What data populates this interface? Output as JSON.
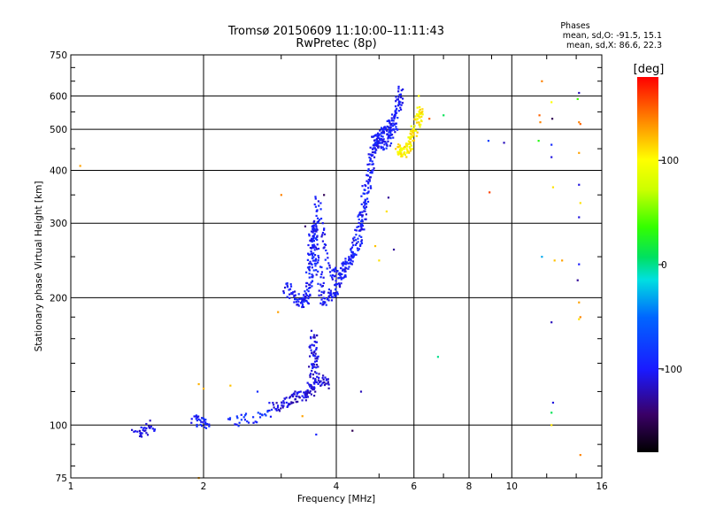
{
  "chart_data": {
    "type": "scatter",
    "title": "Tromsø 20150609 11:10:00–11:11:43",
    "subtitle": "RwPretec (8p)",
    "xlabel": "Frequency [MHz]",
    "ylabel": "Stationary phase Virtual Height [km]",
    "x_scale": "log",
    "y_scale": "log",
    "xlim": [
      1,
      16
    ],
    "ylim": [
      75,
      750
    ],
    "x_ticks": [
      1,
      2,
      4,
      6,
      8,
      10,
      16
    ],
    "x_tick_labels": [
      "1",
      "2",
      "4",
      "6",
      "8",
      "10",
      "16"
    ],
    "y_ticks": [
      75,
      100,
      200,
      300,
      400,
      500,
      600,
      750
    ],
    "y_tick_labels": [
      "75",
      "100",
      "200",
      "300",
      "400",
      "500",
      "600",
      "750"
    ],
    "grid": true,
    "stats": {
      "heading": "Phases",
      "line_o": "mean, sd,O: -91.5, 15.1",
      "line_x": "mean, sd,X:  86.6, 22.3"
    },
    "colorbar": {
      "label": "[deg]",
      "range": [
        -180,
        180
      ],
      "ticks": [
        100,
        0,
        -100
      ],
      "tick_labels": [
        "100",
        "0",
        "-100"
      ]
    },
    "traces": [
      {
        "points": [
          [
            1.4,
            95
          ],
          [
            1.55,
            100
          ]
        ],
        "phase": -110
      },
      {
        "points": [
          [
            1.9,
            103
          ],
          [
            2.05,
            100
          ]
        ],
        "phase": -95
      },
      {
        "points": [
          [
            2.3,
            102
          ],
          [
            2.85,
            106
          ]
        ],
        "phase": -90
      },
      {
        "points": [
          [
            2.85,
            110
          ],
          [
            3.15,
            115
          ],
          [
            3.4,
            118
          ],
          [
            3.55,
            122
          ]
        ],
        "phase": -112
      },
      {
        "points": [
          [
            3.5,
            122
          ],
          [
            3.55,
            165
          ],
          [
            3.6,
            130
          ],
          [
            3.85,
            125
          ]
        ],
        "phase": -110
      },
      {
        "points": [
          [
            3.05,
            215
          ],
          [
            3.3,
            195
          ],
          [
            3.45,
            200
          ],
          [
            3.5,
            260
          ],
          [
            3.55,
            300
          ],
          [
            3.6,
            250
          ],
          [
            3.75,
            195
          ],
          [
            4.0,
            210
          ],
          [
            4.2,
            235
          ],
          [
            4.5,
            275
          ],
          [
            4.7,
            350
          ],
          [
            4.85,
            450
          ],
          [
            5.0,
            480
          ],
          [
            5.2,
            500
          ],
          [
            5.5,
            550
          ],
          [
            5.6,
            620
          ]
        ],
        "phase": -100
      },
      {
        "points": [
          [
            3.5,
            210
          ],
          [
            3.6,
            340
          ],
          [
            3.9,
            225
          ],
          [
            4.3,
            245
          ],
          [
            4.6,
            330
          ],
          [
            4.9,
            480
          ],
          [
            5.2,
            460
          ],
          [
            5.5,
            520
          ]
        ],
        "phase": -98
      },
      {
        "points": [
          [
            5.5,
            450
          ],
          [
            5.7,
            440
          ],
          [
            5.9,
            470
          ],
          [
            6.1,
            520
          ],
          [
            6.2,
            560
          ]
        ],
        "phase": 105
      }
    ],
    "scattered": [
      {
        "x": 1.05,
        "y": 410,
        "phase": 130
      },
      {
        "x": 1.95,
        "y": 125,
        "phase": 125
      },
      {
        "x": 2.0,
        "y": 122,
        "phase": 125
      },
      {
        "x": 1.95,
        "y": 75,
        "phase": 130
      },
      {
        "x": 2.3,
        "y": 124,
        "phase": 120
      },
      {
        "x": 2.65,
        "y": 120,
        "phase": -90
      },
      {
        "x": 3.0,
        "y": 350,
        "phase": 140
      },
      {
        "x": 2.95,
        "y": 185,
        "phase": 130
      },
      {
        "x": 3.35,
        "y": 105,
        "phase": 130
      },
      {
        "x": 3.6,
        "y": 95,
        "phase": -95
      },
      {
        "x": 3.4,
        "y": 295,
        "phase": -140
      },
      {
        "x": 3.75,
        "y": 350,
        "phase": -150
      },
      {
        "x": 4.35,
        "y": 97,
        "phase": -150
      },
      {
        "x": 4.55,
        "y": 120,
        "phase": -120
      },
      {
        "x": 4.9,
        "y": 265,
        "phase": 120
      },
      {
        "x": 5.0,
        "y": 245,
        "phase": 110
      },
      {
        "x": 5.2,
        "y": 320,
        "phase": 110
      },
      {
        "x": 5.25,
        "y": 345,
        "phase": -130
      },
      {
        "x": 5.4,
        "y": 260,
        "phase": -130
      },
      {
        "x": 6.15,
        "y": 600,
        "phase": 100
      },
      {
        "x": 6.5,
        "y": 530,
        "phase": 150
      },
      {
        "x": 6.8,
        "y": 145,
        "phase": 0
      },
      {
        "x": 7.0,
        "y": 540,
        "phase": 10
      },
      {
        "x": 8.85,
        "y": 470,
        "phase": -75
      },
      {
        "x": 9.6,
        "y": 465,
        "phase": -120
      },
      {
        "x": 8.9,
        "y": 355,
        "phase": 160
      },
      {
        "x": 11.7,
        "y": 650,
        "phase": 140
      },
      {
        "x": 11.55,
        "y": 540,
        "phase": 150
      },
      {
        "x": 11.6,
        "y": 520,
        "phase": 140
      },
      {
        "x": 11.7,
        "y": 250,
        "phase": -30
      },
      {
        "x": 11.5,
        "y": 470,
        "phase": 30
      },
      {
        "x": 12.3,
        "y": 580,
        "phase": 100
      },
      {
        "x": 12.35,
        "y": 530,
        "phase": -150
      },
      {
        "x": 12.3,
        "y": 460,
        "phase": -90
      },
      {
        "x": 12.3,
        "y": 430,
        "phase": -110
      },
      {
        "x": 12.4,
        "y": 365,
        "phase": 110
      },
      {
        "x": 12.5,
        "y": 245,
        "phase": 120
      },
      {
        "x": 12.3,
        "y": 175,
        "phase": -120
      },
      {
        "x": 12.4,
        "y": 113,
        "phase": -110
      },
      {
        "x": 12.3,
        "y": 107,
        "phase": 10
      },
      {
        "x": 12.3,
        "y": 100,
        "phase": 110
      },
      {
        "x": 13.0,
        "y": 245,
        "phase": 130
      },
      {
        "x": 14.2,
        "y": 610,
        "phase": -120
      },
      {
        "x": 14.1,
        "y": 590,
        "phase": 40
      },
      {
        "x": 14.2,
        "y": 520,
        "phase": 140
      },
      {
        "x": 14.3,
        "y": 515,
        "phase": 150
      },
      {
        "x": 14.2,
        "y": 440,
        "phase": 130
      },
      {
        "x": 14.2,
        "y": 370,
        "phase": -110
      },
      {
        "x": 14.3,
        "y": 335,
        "phase": 110
      },
      {
        "x": 14.2,
        "y": 310,
        "phase": -110
      },
      {
        "x": 14.2,
        "y": 240,
        "phase": -100
      },
      {
        "x": 14.1,
        "y": 220,
        "phase": -130
      },
      {
        "x": 14.2,
        "y": 195,
        "phase": 130
      },
      {
        "x": 14.3,
        "y": 180,
        "phase": 140
      },
      {
        "x": 14.2,
        "y": 178,
        "phase": 110
      },
      {
        "x": 14.3,
        "y": 85,
        "phase": 140
      }
    ]
  }
}
